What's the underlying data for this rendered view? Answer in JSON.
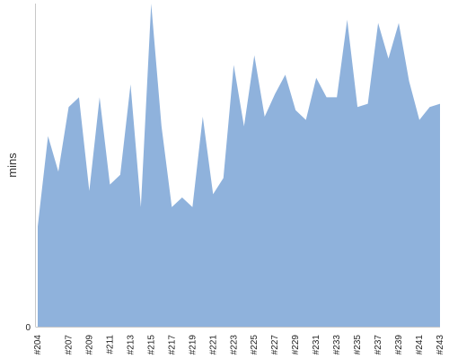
{
  "chart_data": {
    "type": "area",
    "title": "",
    "xlabel": "",
    "ylabel": "mins",
    "y_tick_labels": [
      "0"
    ],
    "ylim": [
      0,
      100
    ],
    "grid": false,
    "legend": "none",
    "color": "#8fb2dc",
    "x": [
      "#204",
      "#205",
      "#206",
      "#207",
      "#208",
      "#209",
      "#210",
      "#211",
      "#212",
      "#213",
      "#214",
      "#215",
      "#216",
      "#217",
      "#218",
      "#219",
      "#220",
      "#221",
      "#222",
      "#223",
      "#224",
      "#225",
      "#226",
      "#227",
      "#228",
      "#229",
      "#230",
      "#231",
      "#232",
      "#233",
      "#234",
      "#235",
      "#236",
      "#237",
      "#238",
      "#239",
      "#240",
      "#241",
      "#242",
      "#243"
    ],
    "x_tick_labels": [
      "#204",
      "#207",
      "#209",
      "#211",
      "#213",
      "#215",
      "#217",
      "#219",
      "#221",
      "#223",
      "#225",
      "#227",
      "#229",
      "#231",
      "#233",
      "#235",
      "#237",
      "#239",
      "#241",
      "#243"
    ],
    "series": [
      {
        "name": "",
        "values": [
          31,
          59,
          48,
          68,
          71,
          42,
          71,
          44,
          47,
          75,
          37,
          100,
          62,
          37,
          40,
          37,
          65,
          41,
          46,
          81,
          62,
          84,
          65,
          72,
          78,
          67,
          64,
          77,
          71,
          71,
          95,
          68,
          69,
          94,
          83,
          94,
          76,
          64,
          68,
          69
        ]
      }
    ]
  }
}
